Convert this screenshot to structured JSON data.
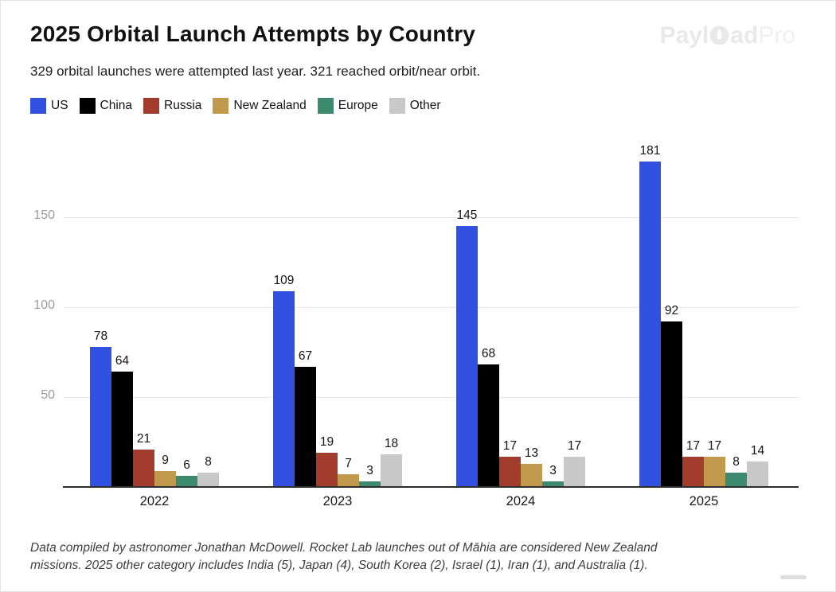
{
  "header": {
    "title": "2025 Orbital Launch Attempts by Country",
    "subtitle": "329 orbital launches were attempted last year. 321 reached orbit/near orbit."
  },
  "watermark": {
    "bold_left": "Payl",
    "bold_right": "ad",
    "light": "Pro"
  },
  "chart_data": {
    "type": "bar",
    "title": "2025 Orbital Launch Attempts by Country",
    "subtitle": "329 orbital launches were attempted last year. 321 reached orbit/near orbit.",
    "categories": [
      "2022",
      "2023",
      "2024",
      "2025"
    ],
    "series": [
      {
        "name": "US",
        "color": "#3351e1",
        "values": [
          78,
          109,
          145,
          181
        ]
      },
      {
        "name": "China",
        "color": "#000000",
        "values": [
          64,
          67,
          68,
          92
        ]
      },
      {
        "name": "Russia",
        "color": "#a23c2d",
        "values": [
          21,
          19,
          17,
          17
        ]
      },
      {
        "name": "New Zealand",
        "color": "#c19a4e",
        "values": [
          9,
          7,
          13,
          17
        ]
      },
      {
        "name": "Europe",
        "color": "#3d8a6e",
        "values": [
          6,
          3,
          3,
          8
        ]
      },
      {
        "name": "Other",
        "color": "#c8c8c8",
        "values": [
          8,
          18,
          17,
          14
        ]
      }
    ],
    "yticks": [
      50,
      100,
      150
    ],
    "ylim": [
      0,
      190
    ],
    "xlabel": "",
    "ylabel": "",
    "grid": true,
    "legend_position": "top-left",
    "value_labels": true
  },
  "footer": {
    "line1": "Data compiled by astronomer Jonathan McDowell. Rocket Lab launches out of Māhia are considered New Zealand",
    "line2": "missions. 2025 other category includes India (5), Japan (4), South Korea (2), Israel (1), Iran (1), and Australia (1)."
  }
}
